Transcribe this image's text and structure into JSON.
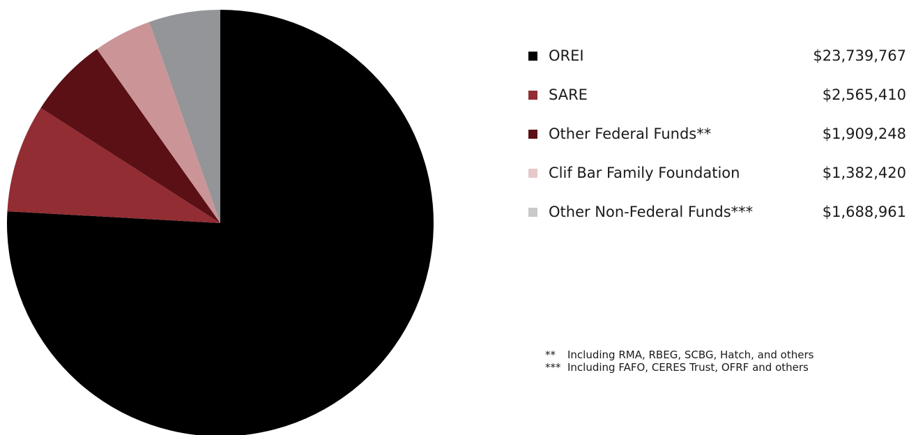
{
  "chart_data": {
    "type": "pie",
    "title": "",
    "slices": [
      {
        "label": "OREI",
        "value": 23739767,
        "display_value": "$23,739,767",
        "color": "#000000",
        "legend_color": "#000000"
      },
      {
        "label": "SARE",
        "value": 2565410,
        "display_value": "$2,565,410",
        "color": "#922d33",
        "legend_color": "#922d33"
      },
      {
        "label": "Other Federal Funds**",
        "value": 1909248,
        "display_value": "$1,909,248",
        "color": "#5a1014",
        "legend_color": "#5a1014"
      },
      {
        "label": "Clif Bar Family Foundation",
        "value": 1382420,
        "display_value": "$1,382,420",
        "color": "#cb9598",
        "legend_color": "#e6c8ca"
      },
      {
        "label": "Other Non-Federal Funds***",
        "value": 1688961,
        "display_value": "$1,688,961",
        "color": "#939598",
        "legend_color": "#c9c9cb"
      }
    ],
    "start_angle": "12 o'clock",
    "direction": "clockwise",
    "legend_position": "right",
    "footnotes": [
      {
        "mark": "**",
        "text": "Including RMA, RBEG, SCBG, Hatch, and others"
      },
      {
        "mark": "***",
        "text": "Including FAFO, CERES Trust, OFRF and others"
      }
    ]
  }
}
